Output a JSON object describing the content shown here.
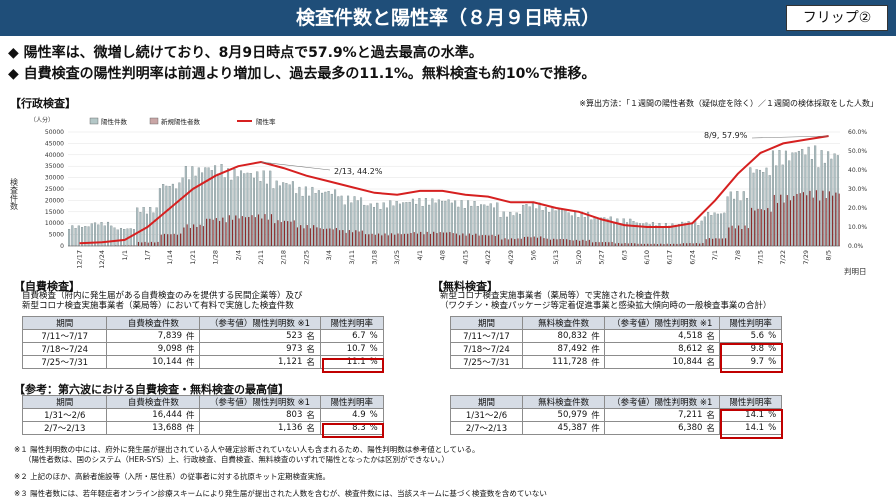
{
  "header": {
    "title": "検査件数と陽性率（８月９日時点）",
    "flip_label": "フリップ②"
  },
  "bullets": [
    "◆ 陽性率は、微増し続けており、8月9日時点で57.9%と過去最高の水準。",
    "◆ 自費検査の陽性判明率は前週より増加し、過去最多の11.1%。無料検査も約10%で推移。"
  ],
  "admin": {
    "heading": "【行政検査】",
    "note": "※算出方法：「１週間の陽性者数（疑似症を除く）／１週間の検体採取をした人数」"
  },
  "chart_data": {
    "type": "bar",
    "title": "",
    "ylabel": "検査件数",
    "y_unit": "（人分）",
    "xlabel": "判明日",
    "ylim": [
      0,
      50000
    ],
    "y_ticks": [
      "0",
      "5000",
      "10000",
      "15000",
      "20000",
      "25000",
      "30000",
      "35000",
      "40000",
      "45000",
      "50000"
    ],
    "y2lim": [
      0,
      60
    ],
    "y2_ticks": [
      "0.0%",
      "10.0%",
      "20.0%",
      "30.0%",
      "40.0%",
      "50.0%",
      "60.0%"
    ],
    "x_ticks": [
      "12/17",
      "12/24",
      "1/1",
      "1/7",
      "1/14",
      "1/21",
      "1/28",
      "2/4",
      "2/11",
      "2/18",
      "2/25",
      "3/4",
      "3/11",
      "3/18",
      "3/25",
      "4/1",
      "4/8",
      "4/15",
      "4/22",
      "4/29",
      "5/6",
      "5/13",
      "5/20",
      "5/27",
      "6/3",
      "6/10",
      "6/17",
      "6/24",
      "7/1",
      "7/8",
      "7/15",
      "7/22",
      "7/29",
      "8/5"
    ],
    "series": [
      {
        "name": "陽性件数"
      },
      {
        "name": "新規陽性者数"
      },
      {
        "name": "陽性率"
      }
    ],
    "weeks": [
      {
        "label": "12/17",
        "tests": 9000,
        "positives": 60,
        "rate": 1.5
      },
      {
        "label": "12/24",
        "tests": 10500,
        "positives": 120,
        "rate": 2.0
      },
      {
        "label": "1/1",
        "tests": 8000,
        "positives": 250,
        "rate": 3.2
      },
      {
        "label": "1/7",
        "tests": 17000,
        "positives": 1800,
        "rate": 10.0
      },
      {
        "label": "1/14",
        "tests": 28000,
        "positives": 5500,
        "rate": 20.0
      },
      {
        "label": "1/21",
        "tests": 35000,
        "positives": 9500,
        "rate": 30.0
      },
      {
        "label": "1/28",
        "tests": 36000,
        "positives": 12500,
        "rate": 37.0
      },
      {
        "label": "2/4",
        "tests": 34000,
        "positives": 13500,
        "rate": 42.0
      },
      {
        "label": "2/11",
        "tests": 33000,
        "positives": 14000,
        "rate": 44.2
      },
      {
        "label": "2/18",
        "tests": 29000,
        "positives": 11500,
        "rate": 41.0
      },
      {
        "label": "2/25",
        "tests": 26000,
        "positives": 9200,
        "rate": 37.0
      },
      {
        "label": "3/4",
        "tests": 25000,
        "positives": 8000,
        "rate": 34.0
      },
      {
        "label": "3/11",
        "tests": 22000,
        "positives": 7000,
        "rate": 31.0
      },
      {
        "label": "3/18",
        "tests": 19000,
        "positives": 5500,
        "rate": 28.0
      },
      {
        "label": "3/25",
        "tests": 20000,
        "positives": 5600,
        "rate": 27.0
      },
      {
        "label": "4/1",
        "tests": 21000,
        "positives": 6200,
        "rate": 29.0
      },
      {
        "label": "4/8",
        "tests": 21000,
        "positives": 6300,
        "rate": 29.0
      },
      {
        "label": "4/15",
        "tests": 20000,
        "positives": 5500,
        "rate": 27.0
      },
      {
        "label": "4/22",
        "tests": 19000,
        "positives": 5000,
        "rate": 26.0
      },
      {
        "label": "4/29",
        "tests": 15000,
        "positives": 3400,
        "rate": 23.0
      },
      {
        "label": "5/6",
        "tests": 19000,
        "positives": 4200,
        "rate": 23.0
      },
      {
        "label": "5/13",
        "tests": 17000,
        "positives": 3200,
        "rate": 20.0
      },
      {
        "label": "5/20",
        "tests": 15000,
        "positives": 2700,
        "rate": 18.0
      },
      {
        "label": "5/27",
        "tests": 13000,
        "positives": 1800,
        "rate": 14.0
      },
      {
        "label": "6/3",
        "tests": 12000,
        "positives": 1300,
        "rate": 11.0
      },
      {
        "label": "6/10",
        "tests": 10500,
        "positives": 1000,
        "rate": 10.0
      },
      {
        "label": "6/17",
        "tests": 10000,
        "positives": 1000,
        "rate": 10.0
      },
      {
        "label": "6/24",
        "tests": 11000,
        "positives": 1300,
        "rate": 12.0
      },
      {
        "label": "7/1",
        "tests": 15000,
        "positives": 3500,
        "rate": 24.0
      },
      {
        "label": "7/8",
        "tests": 24000,
        "positives": 9000,
        "rate": 38.0
      },
      {
        "label": "7/15",
        "tests": 35000,
        "positives": 17000,
        "rate": 49.0
      },
      {
        "label": "7/22",
        "tests": 42000,
        "positives": 22500,
        "rate": 54.0
      },
      {
        "label": "7/29",
        "tests": 44000,
        "positives": 24500,
        "rate": 56.0
      },
      {
        "label": "8/5",
        "tests": 42000,
        "positives": 24300,
        "rate": 57.9
      }
    ],
    "annotations": [
      {
        "text": "2/13, 44.2%"
      },
      {
        "text": "8/9, 57.9%"
      }
    ]
  },
  "self_pay": {
    "heading": "【自費検査】",
    "desc1": "自費検査（府内に発生届がある自費検査のみを提供する民間企業等）及び",
    "desc2": "新型コロナ検査実施事業者（薬局等）において有料で実施した検査件数",
    "columns": [
      "期間",
      "自費検査件数",
      "（参考値）陽性判明数 ※1",
      "陽性判明率"
    ],
    "rows": [
      {
        "period": "7/11～7/17",
        "count": "7,839",
        "count_unit": "件",
        "positive": "523",
        "positive_unit": "名",
        "rate": "6.7",
        "rate_unit": "%"
      },
      {
        "period": "7/18～7/24",
        "count": "9,098",
        "count_unit": "件",
        "positive": "973",
        "positive_unit": "名",
        "rate": "10.7",
        "rate_unit": "%"
      },
      {
        "period": "7/25～7/31",
        "count": "10,144",
        "count_unit": "件",
        "positive": "1,121",
        "positive_unit": "名",
        "rate": "11.1",
        "rate_unit": "%"
      }
    ]
  },
  "free": {
    "heading": "【無料検査】",
    "desc1": "新型コロナ検査実施事業者（薬局等）で実施された検査件数",
    "desc2": "（ワクチン・検査パッケージ等定着促進事業と感染拡大傾向時の一般検査事業の合計）",
    "columns": [
      "期間",
      "無料検査件数",
      "（参考値）陽性判明数 ※1",
      "陽性判明率"
    ],
    "rows": [
      {
        "period": "7/11～7/17",
        "count": "80,832",
        "count_unit": "件",
        "positive": "4,518",
        "positive_unit": "名",
        "rate": "5.6",
        "rate_unit": "%"
      },
      {
        "period": "7/18～7/24",
        "count": "87,492",
        "count_unit": "件",
        "positive": "8,612",
        "positive_unit": "名",
        "rate": "9.8",
        "rate_unit": "%"
      },
      {
        "period": "7/25～7/31",
        "count": "111,728",
        "count_unit": "件",
        "positive": "10,844",
        "positive_unit": "名",
        "rate": "9.7",
        "rate_unit": "%"
      }
    ]
  },
  "ref": {
    "heading": "【参考：第六波における自費検査・無料検査の最高値】",
    "self_rows": [
      {
        "period": "1/31～2/6",
        "count": "16,444",
        "count_unit": "件",
        "positive": "803",
        "positive_unit": "名",
        "rate": "4.9",
        "rate_unit": "%"
      },
      {
        "period": "2/7～2/13",
        "count": "13,688",
        "count_unit": "件",
        "positive": "1,136",
        "positive_unit": "名",
        "rate": "8.3",
        "rate_unit": "%"
      }
    ],
    "free_rows": [
      {
        "period": "1/31～2/6",
        "count": "50,979",
        "count_unit": "件",
        "positive": "7,211",
        "positive_unit": "名",
        "rate": "14.1",
        "rate_unit": "%"
      },
      {
        "period": "2/7～2/13",
        "count": "45,387",
        "count_unit": "件",
        "positive": "6,380",
        "positive_unit": "名",
        "rate": "14.1",
        "rate_unit": "%"
      }
    ]
  },
  "footnotes": [
    "※１ 陽性判明数の中には、府外に発生届が提出されている人や確定診断されていない人も含まれるため、陽性判明数は参考値としている。",
    "（陽性者数は、国のシステム（HER-SYS）上、行政検査、自費検査、無料検査のいずれで陽性となったかは区別ができない。）",
    "※２ 上記のほか、高齢者施設等（入所・居住系）の従事者に対する抗原キット定期検査実施。",
    "※３ 陽性者数には、若年軽症者オンライン診療スキームにより発生届が提出された人数を含むが、検査件数には、当該スキームに基づく検査数を含めていない"
  ]
}
